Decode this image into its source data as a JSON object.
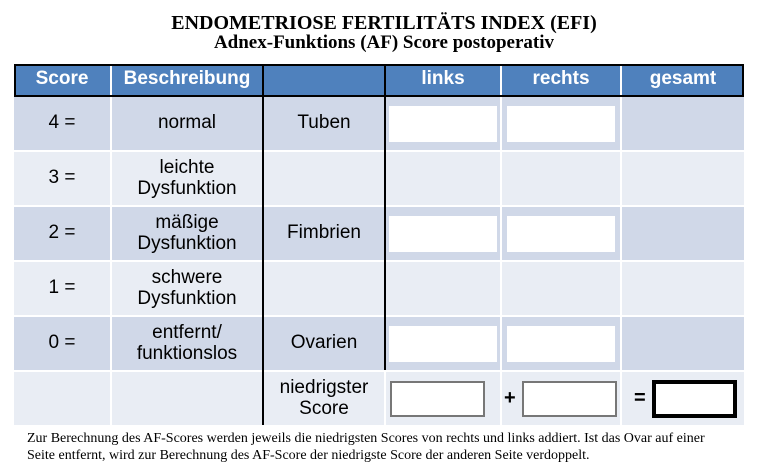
{
  "title": {
    "line1": "ENDOMETRIOSE FERTILITÄTS INDEX (EFI)",
    "line2": "Adnex-Funktions (AF) Score postoperativ"
  },
  "table": {
    "headers": {
      "score": "Score",
      "beschreibung": "Beschreibung",
      "organ": "",
      "links": "links",
      "rechts": "rechts",
      "gesamt": "gesamt"
    },
    "rows": [
      {
        "score": "4 =",
        "description": "normal",
        "organ": "Tuben"
      },
      {
        "score": "3 =",
        "description": "leichte Dysfunktion",
        "organ": ""
      },
      {
        "score": "2 =",
        "description": "mäßige Dysfunktion",
        "organ": "Fimbrien"
      },
      {
        "score": "1 =",
        "description": "schwere Dysfunktion",
        "organ": ""
      },
      {
        "score": "0 =",
        "description": "entfernt/ funktionslos",
        "organ": "Ovarien"
      }
    ],
    "summary": {
      "label": "niedrigster Score",
      "plus": "+",
      "equals": "="
    },
    "inputs": {
      "tuben_links": "",
      "tuben_rechts": "",
      "fimbrien_links": "",
      "fimbrien_rechts": "",
      "ovarien_links": "",
      "ovarien_rechts": "",
      "niedrigster_links": "",
      "niedrigster_rechts": "",
      "gesamt": ""
    }
  },
  "colors": {
    "header_bg": "#4F81BD",
    "band_dark": "#D0D8E8",
    "band_light": "#E9EDF4",
    "header_text": "#FFFFFF",
    "border_black": "#000000",
    "box_border_gray": "#777777"
  },
  "footer": {
    "line1": "Zur Berechnung des AF-Scores werden jeweils die niedrigsten Scores von rechts und links addiert. Ist das Ovar auf einer",
    "line2": "Seite entfernt, wird zur Berechnung des AF-Score der niedrigste Score der anderen Seite verdoppelt."
  }
}
